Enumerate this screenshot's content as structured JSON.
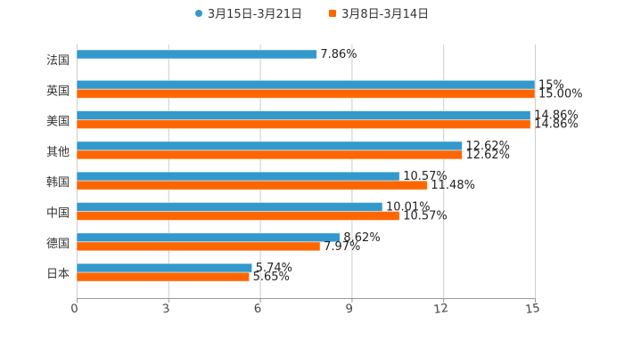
{
  "chart_data": {
    "type": "bar",
    "orientation": "horizontal",
    "title": "",
    "xlabel": "",
    "ylabel": "",
    "categories": [
      "法国",
      "英国",
      "美国",
      "其他",
      "韩国",
      "中国",
      "德国",
      "日本"
    ],
    "series": [
      {
        "name": "3月15日-3月21日",
        "color": "#3399cc",
        "values": [
          7.86,
          15,
          14.86,
          12.62,
          10.57,
          10.01,
          8.62,
          5.74
        ],
        "labels": [
          "7.86%",
          "15%",
          "14.86%",
          "12.62%",
          "10.57%",
          "10.01%",
          "8.62%",
          "5.74%"
        ]
      },
      {
        "name": "3月8日-3月14日",
        "color": "#ff6600",
        "values": [
          null,
          15.0,
          14.86,
          12.62,
          11.48,
          10.57,
          7.97,
          5.65
        ],
        "labels": [
          "",
          "15.00%",
          "14.86%",
          "12.62%",
          "11.48%",
          "10.57%",
          "7.97%",
          "5.65%"
        ]
      }
    ],
    "xlim": [
      0,
      15
    ],
    "xticks": [
      "0",
      "3",
      "6",
      "9",
      "12",
      "15"
    ],
    "grid": true,
    "legend_position": "top"
  },
  "legend": [
    {
      "label": "3月15日-3月21日",
      "color": "#3399cc",
      "shape": "circle"
    },
    {
      "label": "3月8日-3月14日",
      "color": "#ff6600",
      "shape": "square"
    }
  ]
}
